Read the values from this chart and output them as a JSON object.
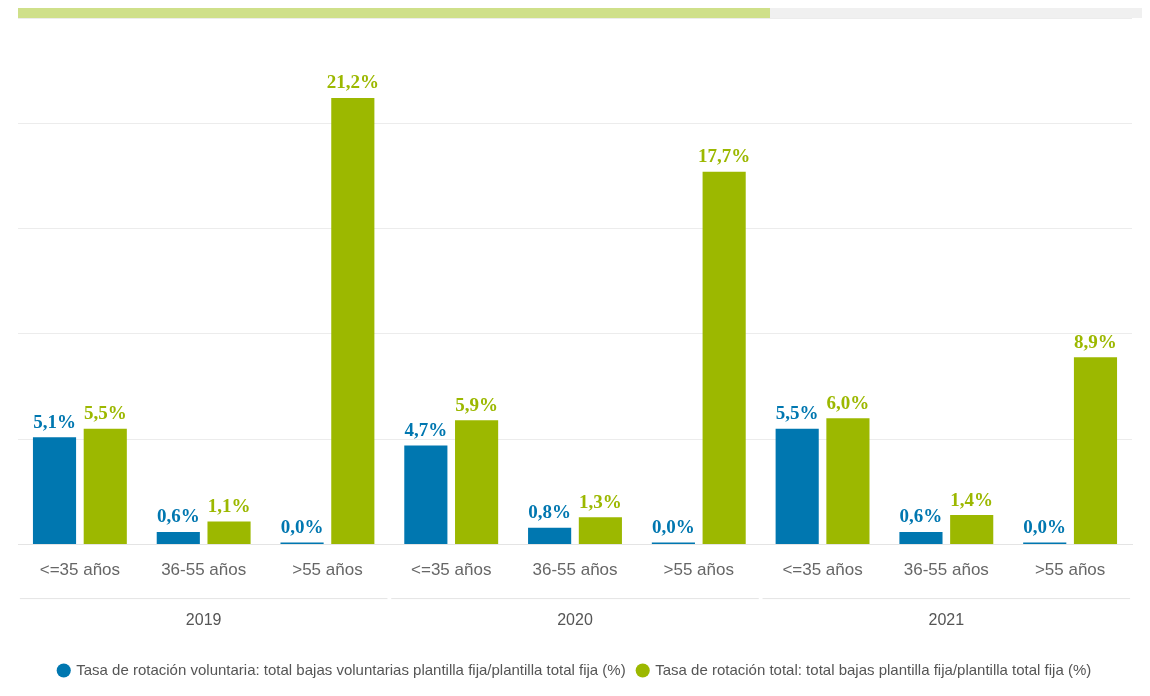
{
  "chart_data": {
    "type": "bar",
    "categories": [
      "<=35 años",
      "36-55 años",
      ">55 años",
      "<=35 años",
      "36-55 años",
      ">55 años",
      "<=35 años",
      "36-55 años",
      ">55 años"
    ],
    "series": [
      {
        "name": "Tasa de rotación voluntaria: total bajas voluntarias plantilla fija/plantilla total fija (%)",
        "color": "#0077b0",
        "values": [
          5.1,
          0.6,
          0.0,
          4.7,
          0.8,
          0.0,
          5.5,
          0.6,
          0.0
        ],
        "value_labels": [
          "5,1%",
          "0,6%",
          "0,0%",
          "4,7%",
          "0,8%",
          "0,0%",
          "5,5%",
          "0,6%",
          "0,0%"
        ]
      },
      {
        "name": "Tasa de rotación total: total bajas plantilla fija/plantilla total fija (%)",
        "color": "#9cb800",
        "values": [
          5.5,
          1.1,
          21.2,
          5.9,
          1.3,
          17.7,
          6.0,
          1.4,
          8.9
        ],
        "value_labels": [
          "5,5%",
          "1,1%",
          "21,2%",
          "5,9%",
          "1,3%",
          "17,7%",
          "6,0%",
          "1,4%",
          "8,9%"
        ]
      }
    ],
    "annotations": [
      "2019",
      "2020",
      "2021"
    ],
    "ylim": [
      0,
      25
    ],
    "yticks": [
      0,
      5,
      10,
      15,
      20,
      25
    ],
    "tick_labels": "x",
    "grid": "y",
    "legend": "bottom"
  }
}
